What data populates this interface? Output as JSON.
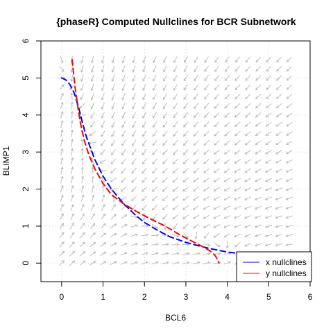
{
  "chart_data": {
    "type": "line",
    "title": "{phaseR} Computed Nullclines for BCR Subnetwork",
    "xlabel": "BCL6",
    "ylabel": "BLIMP1",
    "xlim": [
      -0.5,
      6
    ],
    "ylim": [
      -0.5,
      6
    ],
    "xticks": [
      "0",
      "1",
      "2",
      "3",
      "4",
      "5",
      "6"
    ],
    "yticks": [
      "0",
      "1",
      "2",
      "3",
      "4",
      "5",
      "6"
    ],
    "grid": true,
    "legend_position": "bottom-right",
    "flow_field": {
      "x_range": [
        0,
        5.5
      ],
      "y_range": [
        0,
        5.5
      ],
      "step": 0.25,
      "color": "#bebebe"
    },
    "series": [
      {
        "name": "x nullclines",
        "color": "#0000ff",
        "style": "dashed",
        "x": [
          0.0,
          0.1,
          0.2,
          0.3,
          0.4,
          0.5,
          0.6,
          0.8,
          1.0,
          1.2,
          1.5,
          1.8,
          2.0,
          2.3,
          2.6,
          3.0,
          3.3,
          3.6,
          4.0,
          4.4,
          4.8,
          5.2,
          5.5
        ],
        "y": [
          5.0,
          4.95,
          4.82,
          4.6,
          4.25,
          3.8,
          3.4,
          2.8,
          2.35,
          2.0,
          1.6,
          1.28,
          1.1,
          0.9,
          0.72,
          0.56,
          0.47,
          0.39,
          0.3,
          0.25,
          0.21,
          0.18,
          0.16
        ]
      },
      {
        "name": "y nullclines",
        "color": "#ff0000",
        "style": "dashed",
        "x": [
          0.25,
          0.28,
          0.32,
          0.38,
          0.45,
          0.55,
          0.65,
          0.8,
          1.0,
          1.2,
          1.5,
          1.8,
          2.1,
          2.5,
          2.8,
          3.1,
          3.4,
          3.6,
          3.7,
          3.75,
          3.8
        ],
        "y": [
          5.5,
          5.2,
          4.8,
          4.3,
          3.8,
          3.3,
          2.95,
          2.55,
          2.15,
          1.85,
          1.6,
          1.4,
          1.22,
          1.0,
          0.8,
          0.62,
          0.45,
          0.32,
          0.22,
          0.12,
          0.0
        ]
      }
    ]
  }
}
